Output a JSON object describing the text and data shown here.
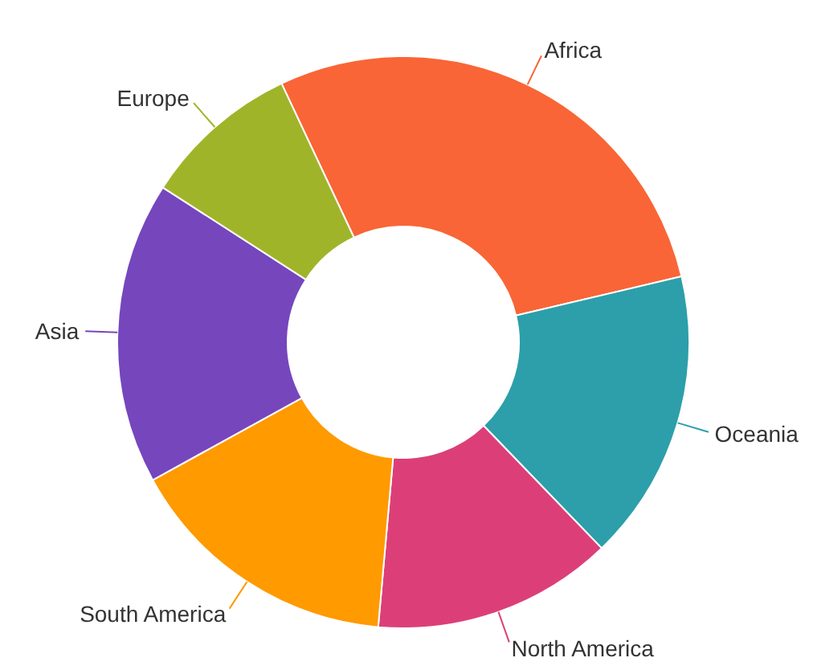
{
  "chart_data": {
    "type": "donut",
    "categories": [
      "Africa",
      "Oceania",
      "North America",
      "South America",
      "Asia",
      "Europe"
    ],
    "values": [
      28.3,
      16.5,
      13.6,
      15.6,
      17.1,
      8.9
    ],
    "colors": [
      "#f96536",
      "#2c9faa",
      "#dc3f78",
      "#ff9a00",
      "#7646bd",
      "#a0b42a"
    ],
    "legend": false
  }
}
